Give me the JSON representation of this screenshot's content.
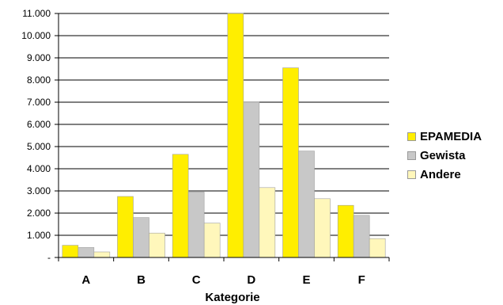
{
  "chart_data": {
    "type": "bar",
    "categories": [
      "A",
      "B",
      "C",
      "D",
      "E",
      "F"
    ],
    "series": [
      {
        "name": "EPAMEDIA",
        "color": "#ffee00",
        "values": [
          550,
          2750,
          4650,
          11000,
          8550,
          2350
        ]
      },
      {
        "name": "Gewista",
        "color": "#c8c8c8",
        "values": [
          450,
          1800,
          2950,
          7000,
          4800,
          1900
        ]
      },
      {
        "name": "Andere",
        "color": "#fff7bb",
        "values": [
          250,
          1100,
          1550,
          3150,
          2650,
          850
        ]
      }
    ],
    "y_ticks": [
      "-",
      "1.000",
      "2.000",
      "3.000",
      "4.000",
      "5.000",
      "6.000",
      "7.000",
      "8.000",
      "9.000",
      "10.000",
      "11.000"
    ],
    "ylim": [
      0,
      11000
    ],
    "xlabel": "Kategorie",
    "legend_position": "right",
    "grid": true
  }
}
